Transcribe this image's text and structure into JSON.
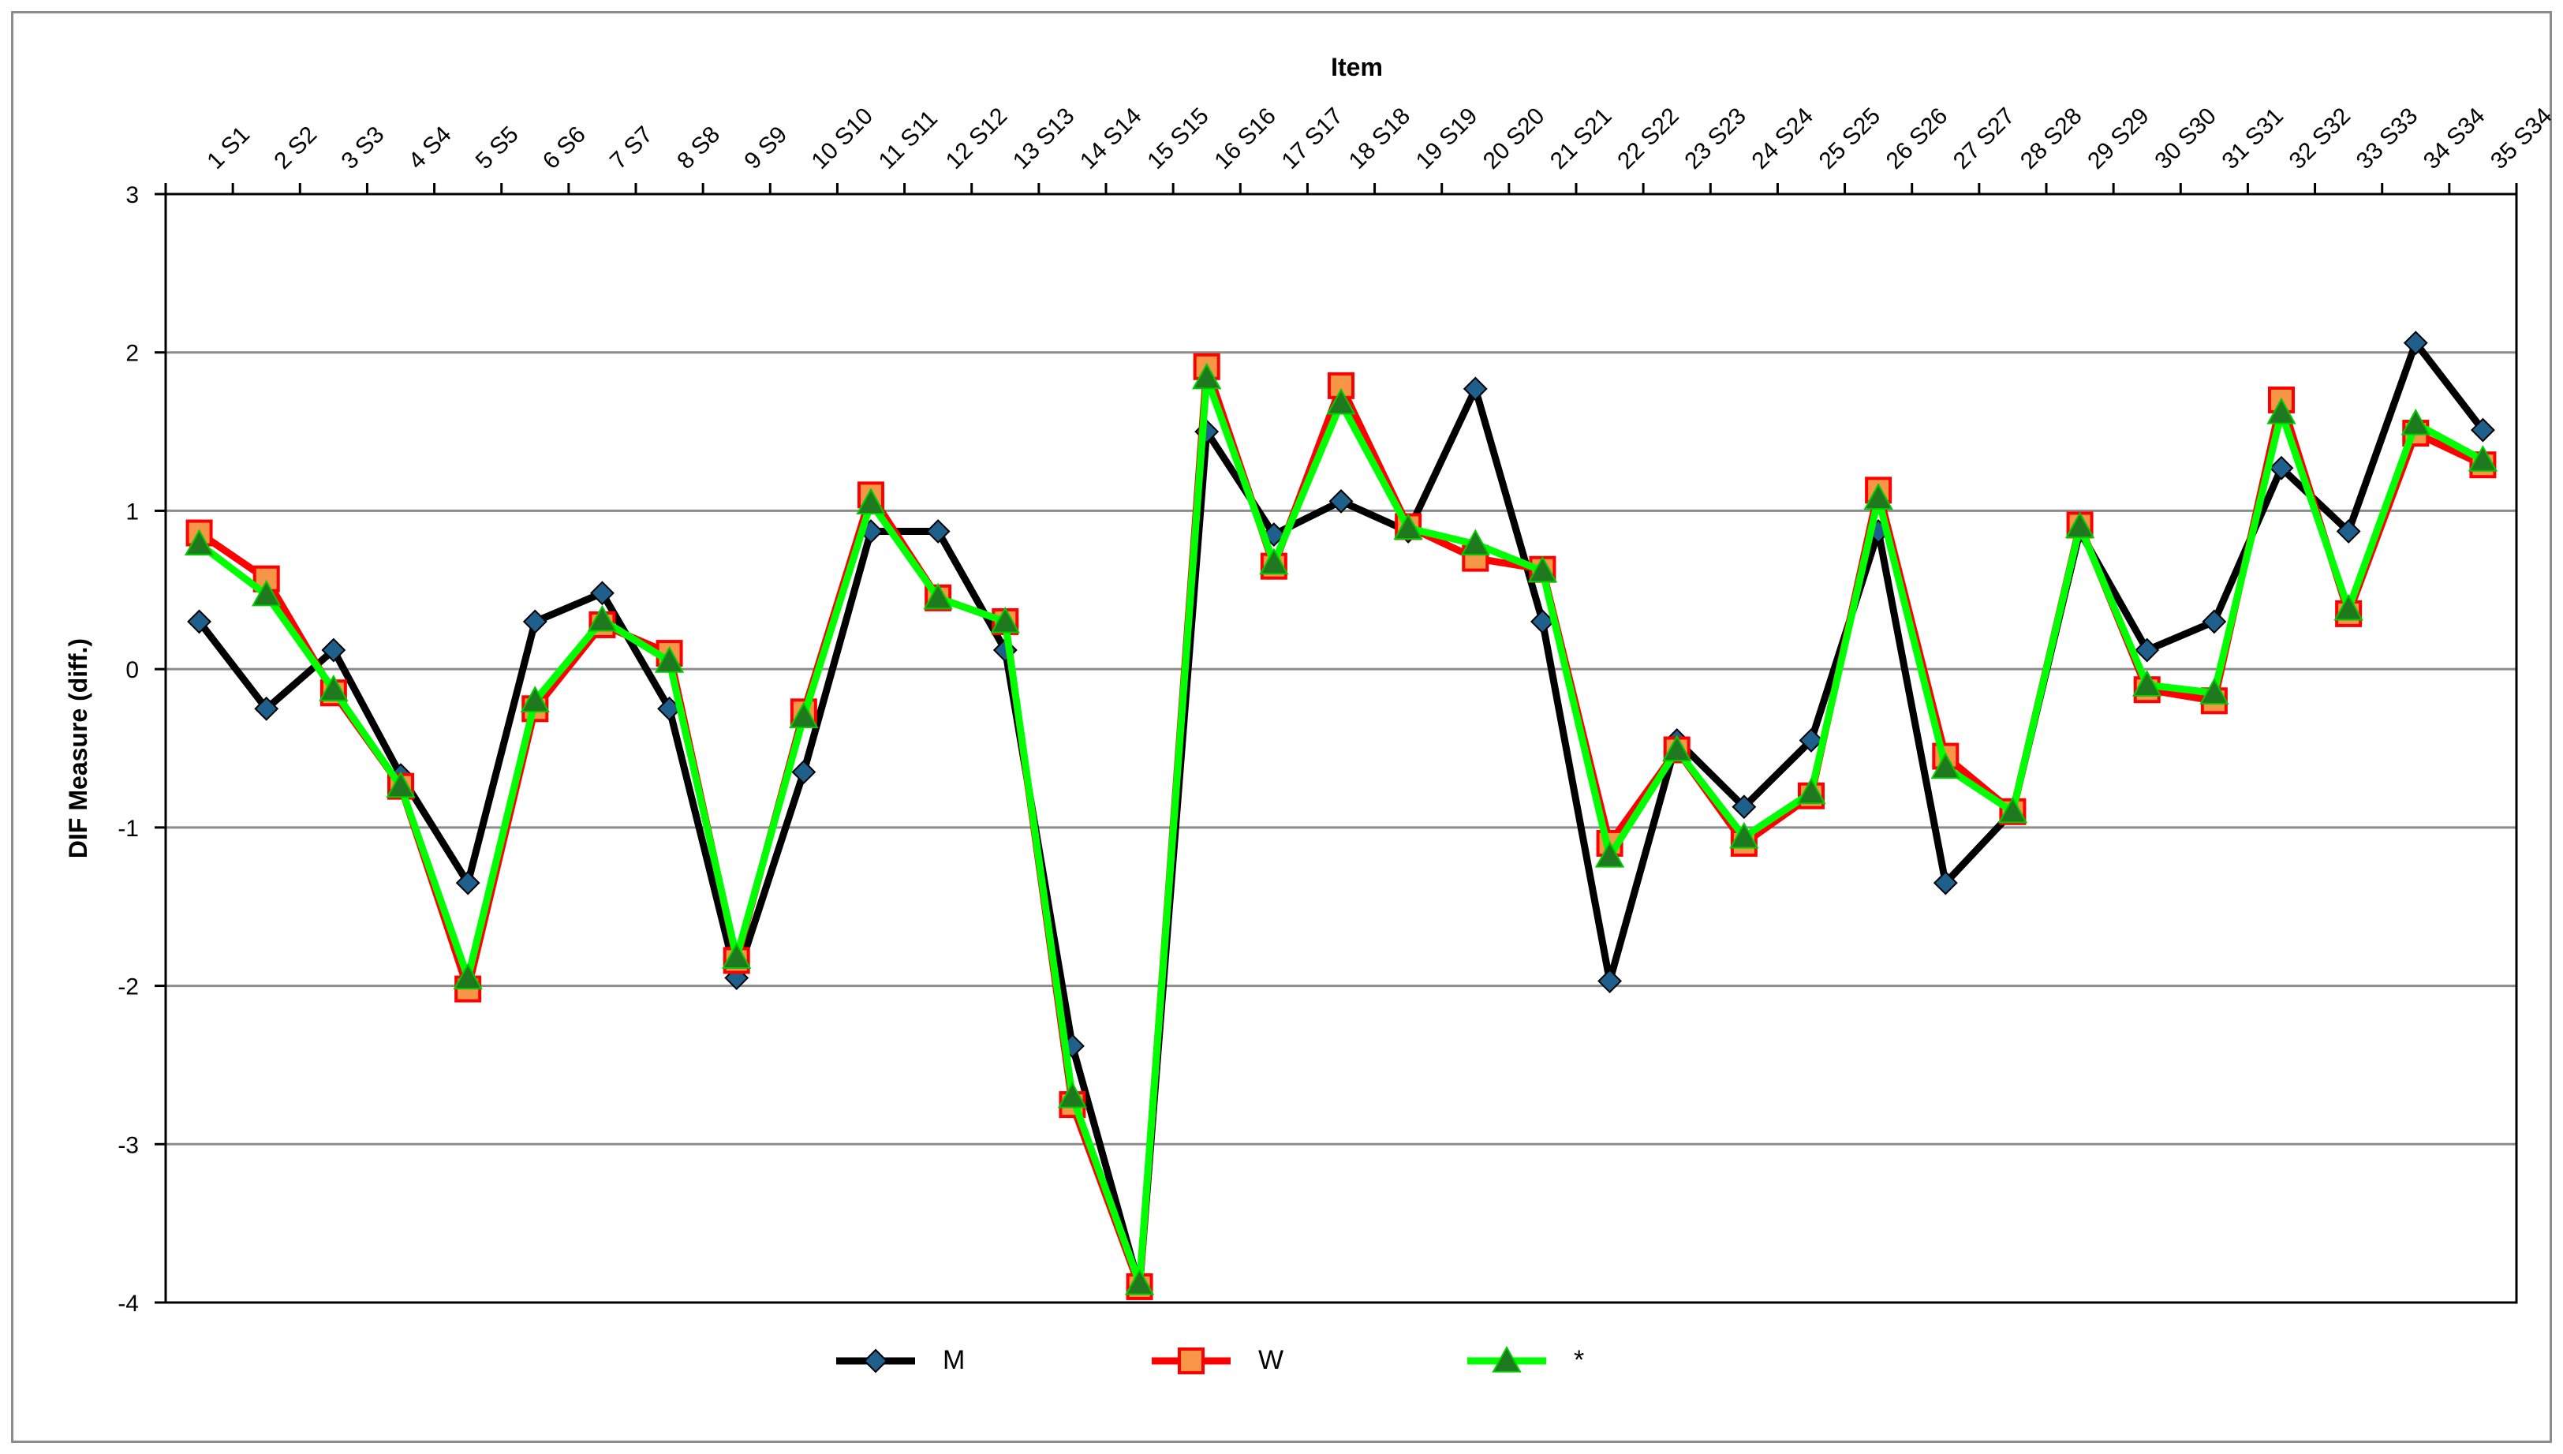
{
  "chart_data": {
    "type": "line",
    "xlabel": "Item",
    "ylabel": "DIF Measure (diff.)",
    "ylim": [
      -4,
      3
    ],
    "yticks": [
      3,
      2,
      1,
      0,
      -1,
      -2,
      -3,
      -4
    ],
    "grid": "horizontal",
    "x_axis_position": "top",
    "legend_position": "bottom",
    "categories": [
      "1 S1",
      "2 S2",
      "3 S3",
      "4 S4",
      "5 S5",
      "6 S6",
      "7 S7",
      "8 S8",
      "9 S9",
      "10 S10",
      "11 S11",
      "12 S12",
      "13 S13",
      "14 S14",
      "15 S15",
      "16 S16",
      "17 S17",
      "18 S18",
      "19 S19",
      "20 S20",
      "21 S21",
      "22 S22",
      "23 S23",
      "24 S24",
      "25 S25",
      "26 S26",
      "27 S27",
      "28 S28",
      "29 S29",
      "30 S30",
      "31 S31",
      "32 S32",
      "33 S33",
      "34 S34",
      "35 S34"
    ],
    "series": [
      {
        "name": "M",
        "color": "#000000",
        "marker": "diamond",
        "marker_color": "#1f5f8b",
        "values": [
          0.3,
          -0.25,
          0.12,
          -0.67,
          -1.35,
          0.3,
          0.48,
          -0.25,
          -1.95,
          -0.65,
          0.87,
          0.87,
          0.12,
          -2.38,
          -3.9,
          1.5,
          0.85,
          1.06,
          0.87,
          1.77,
          0.3,
          -1.97,
          -0.45,
          -0.87,
          -0.45,
          0.87,
          -1.35,
          -0.9,
          0.87,
          0.12,
          0.3,
          1.27,
          0.87,
          2.06,
          1.51
        ]
      },
      {
        "name": "W",
        "color": "#ff0000",
        "marker": "square",
        "marker_color": "#f79646",
        "values": [
          0.86,
          0.57,
          -0.15,
          -0.74,
          -2.02,
          -0.25,
          0.28,
          0.1,
          -1.84,
          -0.27,
          1.1,
          0.45,
          0.3,
          -2.75,
          -3.9,
          1.91,
          0.65,
          1.79,
          0.9,
          0.7,
          0.63,
          -1.1,
          -0.51,
          -1.1,
          -0.8,
          1.13,
          -0.55,
          -0.9,
          0.91,
          -0.13,
          -0.2,
          1.7,
          0.35,
          1.49,
          1.29
        ]
      },
      {
        "name": "*",
        "color": "#00ff00",
        "marker": "triangle",
        "marker_color": "#1f7a1f",
        "values": [
          0.79,
          0.47,
          -0.13,
          -0.74,
          -1.95,
          -0.2,
          0.31,
          0.05,
          -1.82,
          -0.3,
          1.05,
          0.45,
          0.3,
          -2.7,
          -3.88,
          1.84,
          0.67,
          1.68,
          0.89,
          0.79,
          0.62,
          -1.18,
          -0.51,
          -1.06,
          -0.78,
          1.08,
          -0.62,
          -0.9,
          0.9,
          -0.1,
          -0.15,
          1.62,
          0.38,
          1.55,
          1.32
        ]
      }
    ]
  }
}
